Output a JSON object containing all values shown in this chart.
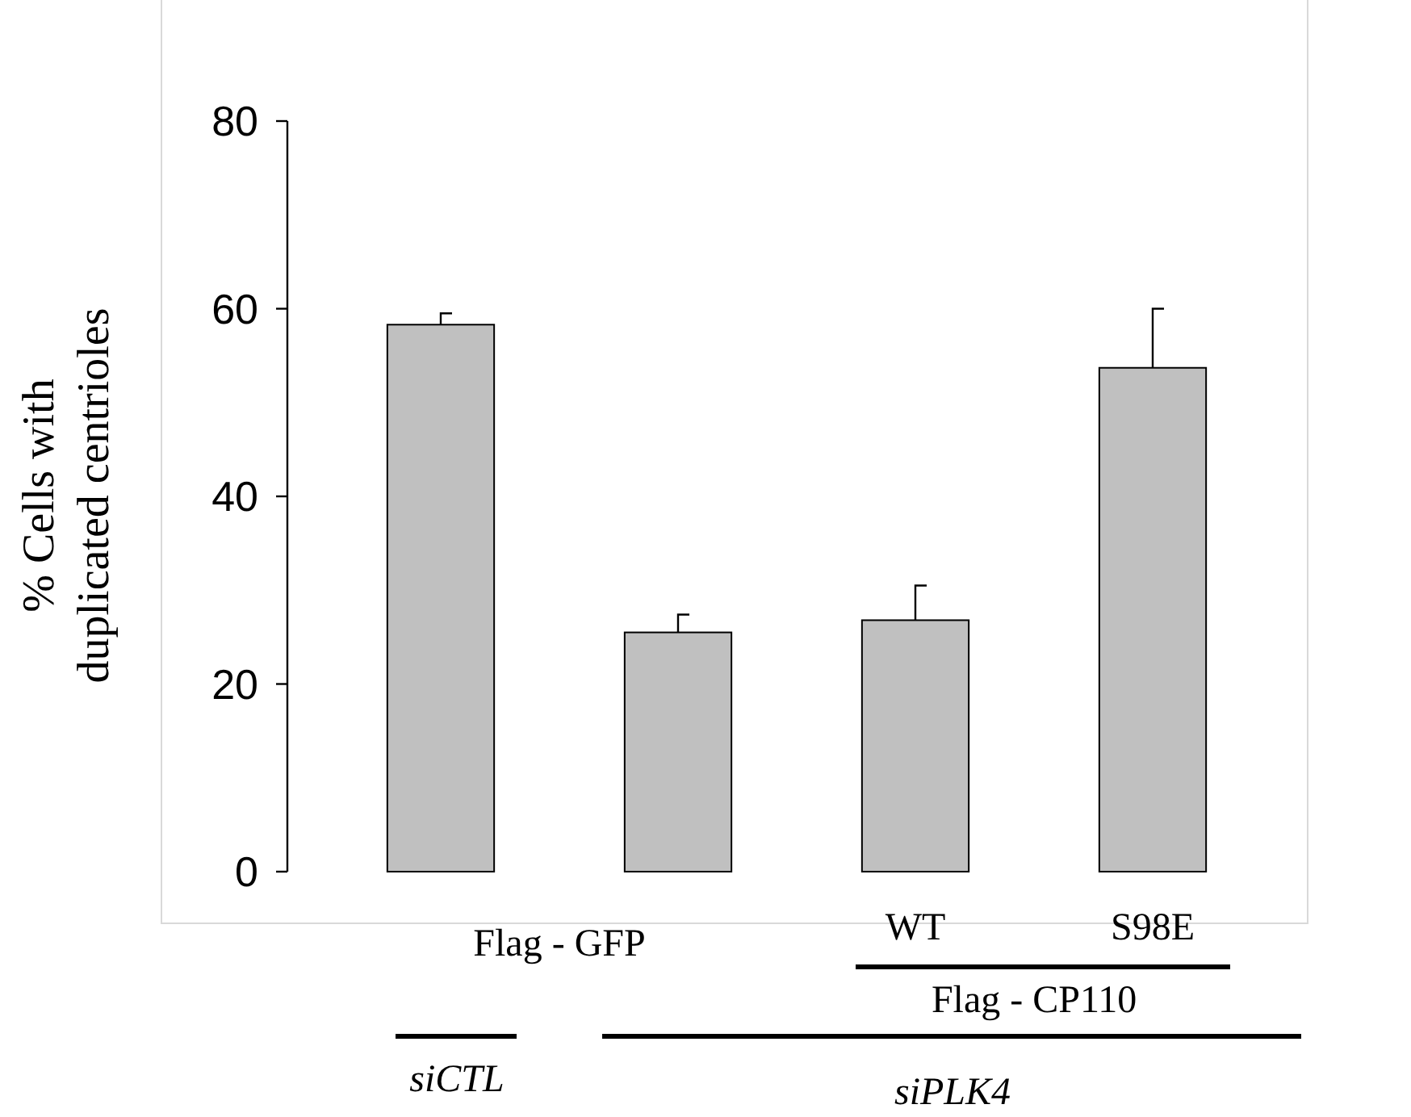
{
  "chart_data": {
    "type": "bar",
    "ylabel": "% Cells with duplicated centrioles",
    "categories": [
      null,
      null,
      "WT",
      "S98E"
    ],
    "values": [
      58.3,
      25.5,
      26.8,
      53.7
    ],
    "color": "#c0c0c0",
    "errors": [
      [
        58.3,
        59.5
      ],
      [
        25.5,
        27.4
      ],
      [
        26.8,
        30.5
      ],
      [
        53.7,
        60.0
      ]
    ],
    "ylim": [
      0,
      80
    ],
    "yticks": [
      0,
      20,
      40,
      60,
      80
    ],
    "grid": false,
    "annotations": [
      "Flag - GFP",
      "Flag - CP110",
      "siCTL",
      "siPLK4"
    ]
  }
}
